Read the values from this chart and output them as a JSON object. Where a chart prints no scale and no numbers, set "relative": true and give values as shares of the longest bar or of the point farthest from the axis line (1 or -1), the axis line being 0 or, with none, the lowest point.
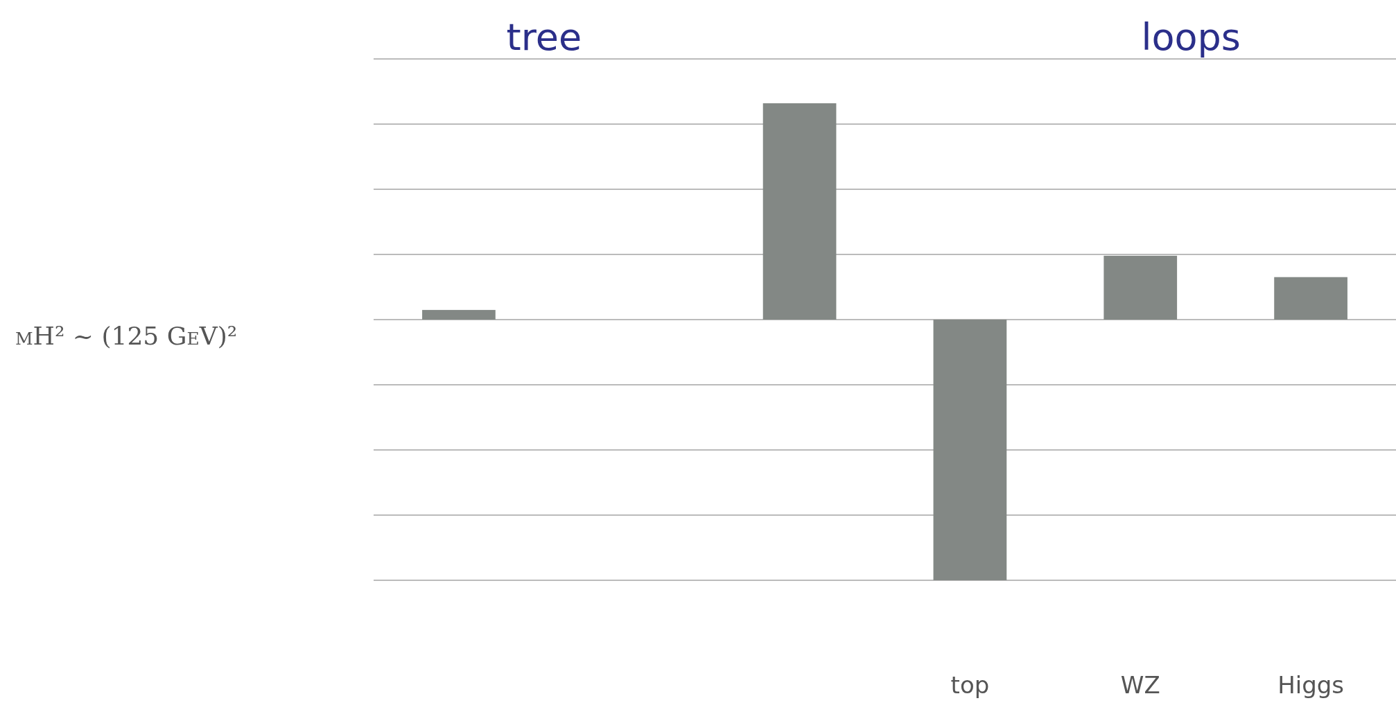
{
  "chart_data": {
    "type": "bar",
    "relative": true,
    "categories": [
      null,
      null,
      null,
      "top",
      "WZ",
      "Higgs"
    ],
    "values": [
      0.037,
      null,
      0.83,
      -1,
      0.245,
      0.163
    ],
    "color": "#838885",
    "grid": true,
    "annotations": [
      "tree",
      "loops",
      "mH² ~ (125 GeV)²"
    ]
  }
}
